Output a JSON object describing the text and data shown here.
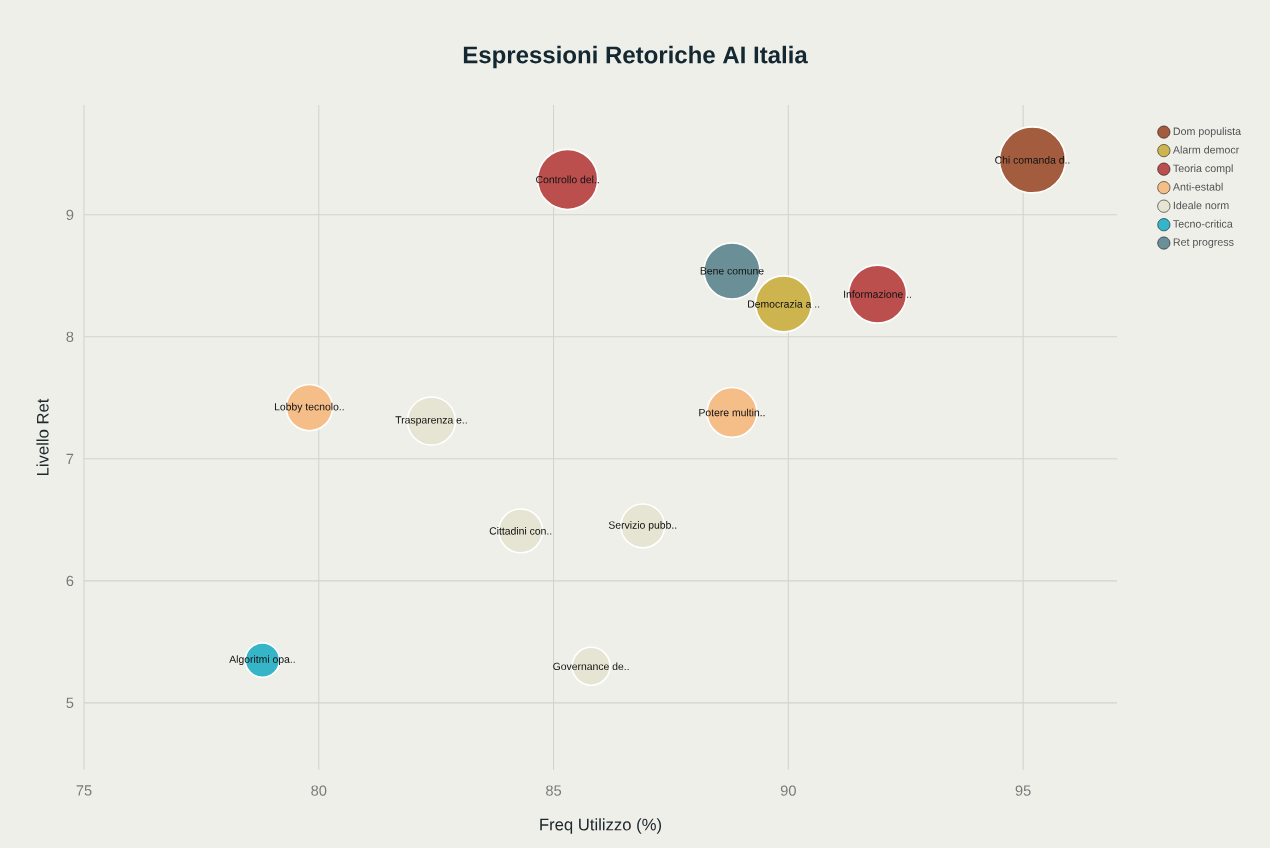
{
  "chart_data": {
    "type": "bubble",
    "title": "Espressioni Retoriche AI Italia",
    "xlabel": "Freq Utilizzo (%)",
    "ylabel": "Livello Ret",
    "xlim": [
      75,
      97
    ],
    "ylim": [
      4.45,
      9.9
    ],
    "xticks": [
      75,
      80,
      85,
      90,
      95
    ],
    "yticks": [
      5,
      6,
      7,
      8,
      9
    ],
    "grid": true,
    "legend": "top right",
    "series": [
      {
        "name": "Dom populista",
        "color": "#a35c3e",
        "x": [
          95.2
        ],
        "values": [
          9.45
        ],
        "sizes": [
          1
        ]
      },
      {
        "name": "Alarm democr",
        "color": "#cdb44e",
        "x": [
          89.9
        ],
        "values": [
          8.27
        ],
        "sizes": [
          0.72
        ]
      },
      {
        "name": "Teoria compl",
        "color": "#bb4f4d",
        "x": [
          85.3,
          91.9
        ],
        "values": [
          9.29,
          8.35
        ],
        "sizes": [
          0.83,
          0.77
        ]
      },
      {
        "name": "Anti-establ",
        "color": "#f5bd88",
        "x": [
          79.8,
          88.8
        ],
        "values": [
          7.42,
          7.38
        ],
        "sizes": [
          0.49,
          0.57
        ]
      },
      {
        "name": "Ideale norm",
        "color": "#e6e4d2",
        "x": [
          82.4,
          84.3,
          86.9,
          85.8
        ],
        "values": [
          7.31,
          6.41,
          6.45,
          5.3
        ],
        "sizes": [
          0.53,
          0.44,
          0.44,
          0.33
        ]
      },
      {
        "name": "Tecno-critica",
        "color": "#36b5c9",
        "x": [
          78.8
        ],
        "values": [
          5.35
        ],
        "sizes": [
          0.27
        ]
      },
      {
        "name": "Ret progress",
        "color": "#6a8f97",
        "x": [
          88.8
        ],
        "values": [
          8.54
        ],
        "sizes": [
          0.72
        ]
      }
    ],
    "annotations": [
      {
        "text": "Chi comanda d..",
        "x": 95.2,
        "y": 9.45
      },
      {
        "text": "Democrazia a ..",
        "x": 89.9,
        "y": 8.27
      },
      {
        "text": "Controllo del..",
        "x": 85.3,
        "y": 9.29
      },
      {
        "text": "Informazione ..",
        "x": 91.9,
        "y": 8.35
      },
      {
        "text": "Lobby tecnolo..",
        "x": 79.8,
        "y": 7.42
      },
      {
        "text": "Potere multin..",
        "x": 88.8,
        "y": 7.38
      },
      {
        "text": "Trasparenza e..",
        "x": 82.4,
        "y": 7.31
      },
      {
        "text": "Cittadini con..",
        "x": 84.3,
        "y": 6.41
      },
      {
        "text": "Servizio pubb..",
        "x": 86.9,
        "y": 6.45
      },
      {
        "text": "Governance de..",
        "x": 85.8,
        "y": 5.3
      },
      {
        "text": "Algoritmi opa..",
        "x": 78.8,
        "y": 5.35
      },
      {
        "text": "Bene comune",
        "x": 88.8,
        "y": 8.54
      }
    ]
  }
}
